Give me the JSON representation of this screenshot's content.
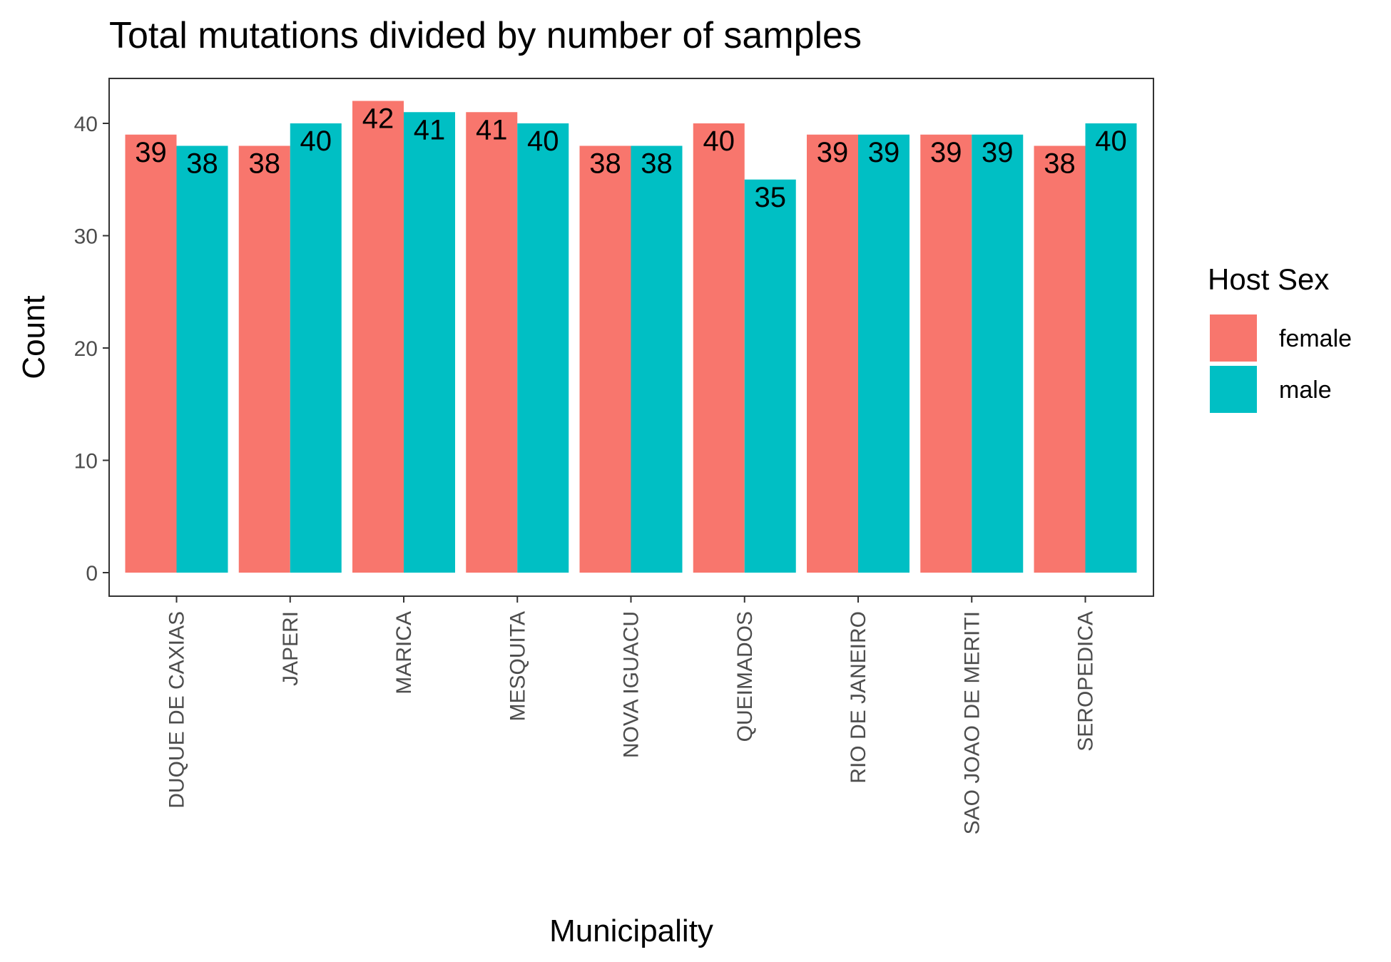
{
  "chart_data": {
    "type": "bar",
    "title": "Total mutations divided by number of samples",
    "xlabel": "Municipality",
    "ylabel": "Count",
    "ylim": [
      0,
      44
    ],
    "yticks": [
      0,
      10,
      20,
      30,
      40
    ],
    "grid": false,
    "legend_position": "right",
    "legend_title": "Host Sex",
    "categories": [
      "DUQUE DE CAXIAS",
      "JAPERI",
      "MARICA",
      "MESQUITA",
      "NOVA IGUACU",
      "QUEIMADOS",
      "RIO DE JANEIRO",
      "SAO JOAO DE MERITI",
      "SEROPEDICA"
    ],
    "series": [
      {
        "name": "female",
        "color": "#F8766D",
        "values": [
          39,
          38,
          42,
          41,
          38,
          40,
          39,
          39,
          38
        ]
      },
      {
        "name": "male",
        "color": "#00BFC4",
        "values": [
          38,
          40,
          41,
          40,
          38,
          35,
          39,
          39,
          40
        ]
      }
    ]
  }
}
